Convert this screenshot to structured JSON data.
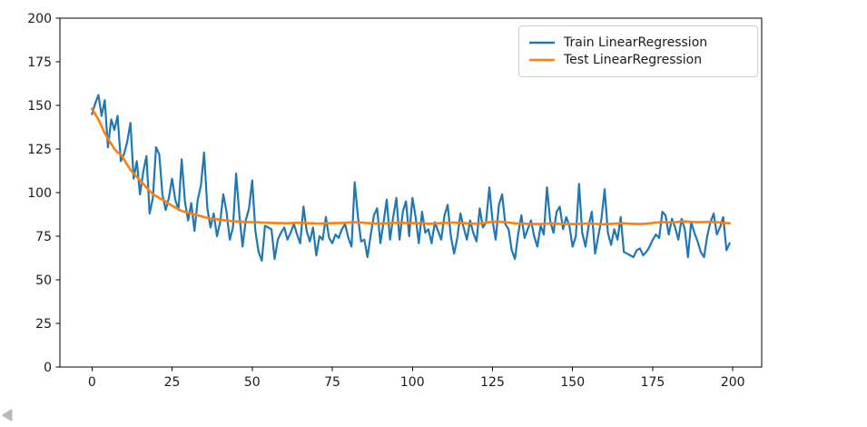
{
  "figure": {
    "background": "#ffffff",
    "axes_color": "#000000",
    "tick_label_color": "#1a1a1a"
  },
  "icons": {
    "collapse_left": "left-pointing triangle",
    "collapse_left_glyph": "◀",
    "collapse_left_color": "#b9b9b9"
  },
  "chart_data": {
    "type": "line",
    "title": "",
    "xlabel": "",
    "ylabel": "",
    "xlim": [
      -10,
      209
    ],
    "ylim": [
      0,
      200
    ],
    "x_ticks": [
      0,
      25,
      50,
      75,
      100,
      125,
      150,
      175,
      200
    ],
    "y_ticks": [
      0,
      25,
      50,
      75,
      100,
      125,
      150,
      175,
      200
    ],
    "grid": false,
    "legend_position": "upper right",
    "x_start": 0,
    "x_step": 1,
    "series": [
      {
        "name": "Train LinearRegression",
        "id": "train-line-series",
        "color": "#1f77b4",
        "width": 2.2,
        "values": [
          145,
          151,
          156,
          144,
          153,
          126,
          142,
          136,
          144,
          118,
          122,
          129,
          140,
          108,
          118,
          99,
          112,
          121,
          88,
          97,
          126,
          122,
          99,
          90,
          97,
          108,
          96,
          90,
          119,
          95,
          84,
          94,
          78,
          96,
          104,
          123,
          91,
          80,
          88,
          75,
          83,
          99,
          89,
          73,
          80,
          111,
          87,
          69,
          84,
          91,
          107,
          78,
          66,
          61,
          81,
          80,
          79,
          62,
          73,
          77,
          80,
          73,
          77,
          82,
          76,
          71,
          92,
          78,
          72,
          80,
          64,
          75,
          73,
          86,
          74,
          71,
          76,
          74,
          79,
          82,
          74,
          69,
          106,
          86,
          72,
          73,
          63,
          76,
          87,
          91,
          71,
          83,
          96,
          73,
          86,
          97,
          73,
          89,
          95,
          75,
          97,
          86,
          71,
          89,
          77,
          79,
          71,
          83,
          78,
          73,
          87,
          93,
          75,
          65,
          74,
          88,
          80,
          73,
          84,
          77,
          72,
          91,
          80,
          83,
          103,
          84,
          73,
          93,
          99,
          82,
          79,
          67,
          62,
          76,
          87,
          74,
          79,
          84,
          75,
          69,
          81,
          76,
          103,
          84,
          77,
          89,
          92,
          79,
          86,
          81,
          69,
          75,
          105,
          77,
          69,
          81,
          89,
          65,
          75,
          85,
          102,
          77,
          70,
          79,
          73,
          86,
          66,
          65,
          64,
          63,
          67,
          68,
          64,
          66,
          69,
          73,
          76,
          74,
          89,
          87,
          76,
          85,
          80,
          73,
          85,
          79,
          63,
          83,
          77,
          72,
          66,
          63,
          75,
          83,
          88,
          76,
          80,
          86,
          67,
          71
        ]
      },
      {
        "name": "Test LinearRegression",
        "id": "test-line-series",
        "color": "#ff7f0e",
        "width": 2.6,
        "values": [
          148,
          145,
          142,
          138,
          134,
          131,
          128,
          125,
          123,
          122,
          119,
          116,
          113,
          111,
          109,
          107,
          105,
          103,
          101,
          99,
          98,
          97,
          96,
          95,
          93.5,
          92.5,
          91.5,
          90.5,
          89.5,
          89,
          88.5,
          88,
          87.5,
          87,
          86.5,
          86,
          85.5,
          85.2,
          85,
          84.8,
          84.5,
          84.2,
          84,
          83.8,
          83.6,
          83.5,
          83.4,
          83.3,
          83.2,
          83.1,
          83,
          83,
          82.9,
          82.8,
          82.8,
          82.7,
          82.6,
          82.6,
          82.5,
          82.5,
          82.4,
          82.4,
          82.5,
          82.6,
          82.7,
          82.7,
          82.6,
          82.5,
          82.4,
          82.4,
          82.3,
          82.3,
          82.3,
          82.4,
          82.4,
          82.5,
          82.5,
          82.6,
          82.6,
          82.7,
          82.8,
          82.9,
          83,
          82.9,
          82.8,
          82.7,
          82.5,
          82.4,
          82.3,
          82.3,
          82.2,
          82.3,
          82.4,
          82.5,
          82.6,
          82.7,
          82.7,
          82.6,
          82.6,
          82.5,
          82.5,
          82.4,
          82.4,
          82.3,
          82.3,
          82.2,
          82.2,
          82.3,
          82.4,
          82.5,
          82.6,
          82.7,
          82.8,
          82.8,
          82.7,
          82.6,
          82.5,
          82.4,
          82.3,
          82.2,
          82.2,
          82.3,
          82.5,
          82.8,
          83,
          83.2,
          83.3,
          83.3,
          83.2,
          83,
          82.8,
          82.6,
          82.4,
          82.3,
          82.2,
          82.2,
          82.1,
          82.1,
          82,
          82,
          82,
          82.1,
          82.2,
          82.3,
          82.3,
          82.2,
          82.1,
          82,
          82,
          82,
          82,
          82,
          82.1,
          82.2,
          82.3,
          82.3,
          82.2,
          82.1,
          82,
          81.9,
          81.9,
          82,
          82.1,
          82.2,
          82.3,
          82.4,
          82.4,
          82.3,
          82.2,
          82.1,
          82,
          82,
          82.1,
          82.2,
          82.4,
          82.6,
          82.8,
          82.9,
          83,
          83,
          82.9,
          82.9,
          83,
          83.2,
          83.4,
          83.5,
          83.4,
          83.2,
          83.1,
          83,
          83,
          83.1,
          83.2,
          83.3,
          83.2,
          83,
          82.8,
          82.6,
          82.5,
          82.4
        ]
      }
    ]
  }
}
